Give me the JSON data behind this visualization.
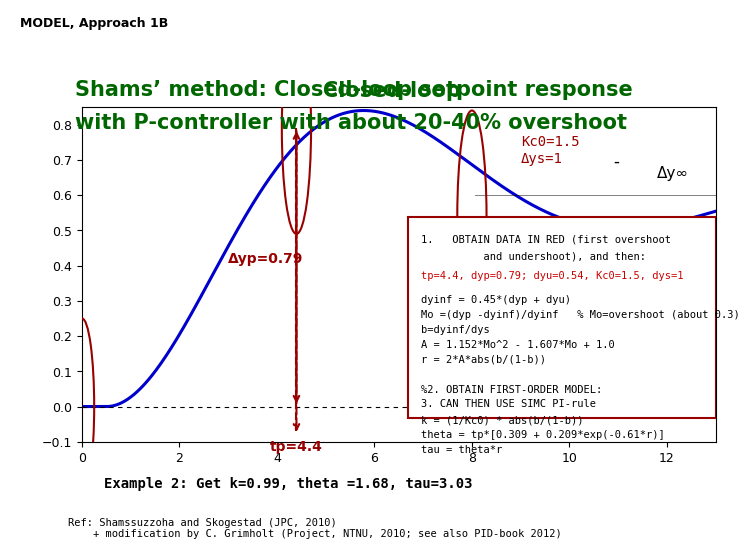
{
  "title_line1": "Shams’ method: Closed-loop setpoint response",
  "title_line2": "with P-controller with about 20-40% overshoot",
  "header_label": "MODEL, Approach 1B",
  "header_bg": "#00AAAA",
  "title_color": "#006600",
  "xlim": [
    0,
    13
  ],
  "ylim": [
    -0.1,
    0.85
  ],
  "xticks": [
    0,
    2,
    4,
    6,
    8,
    10,
    12
  ],
  "yticks": [
    -0.1,
    0,
    0.1,
    0.2,
    0.3,
    0.4,
    0.5,
    0.6,
    0.7,
    0.8
  ],
  "line_color": "#0000CC",
  "kc0_label": "Kc0=1.5\nΔys=1",
  "dyinf_label": "Δy∞",
  "dyp_label": "Δyp=0.79",
  "dyu_label": "Δyu=0.54",
  "tp_label": "tp=4.4",
  "annotation_color": "#990000",
  "box_text_line1": "1.   OBTAIN DATA IN RED (first overshoot",
  "box_text_line2": "          and undershoot), and then:",
  "box_text_red": "tp=4.4, dyp=0.79; dyu=0.54, Kc0=1.5, dys=1",
  "box_text_block": "dyinf = 0.45*(dyp + dyu)\nMo =(dyp -dyinf)/dyinf   % Mo=overshoot (about 0.3)\nb=dyinf/dys\nA = 1.152*Mo^2 - 1.607*Mo + 1.0\nr = 2*A*abs(b/(1-b))\n\n%2. OBTAIN FIRST-ORDER MODEL:\n\nk = (1/Kc0) * abs(b/(1-b))\ntheta = tp*[0.309 + 0.209*exp(-0.61*r)]\ntau = theta*r",
  "box_text_last": "3. CAN THEN USE SIMC PI-rule",
  "example_text": "Example 2: Get k=0.99, theta =1.68, tau=3.03",
  "ref_text": "Ref: Shamssuzzoha and Skogestad (JPC, 2010)\n    + modification by C. Grimholt (Project, NTNU, 2010; see also PID-book 2012)",
  "bg_color": "#FFFFFF"
}
